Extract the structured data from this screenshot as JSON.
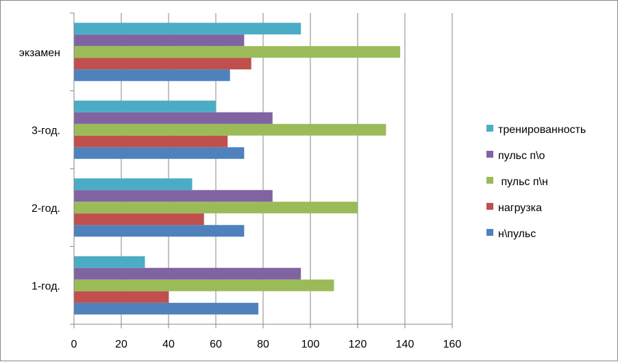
{
  "chart_data": {
    "type": "bar",
    "orientation": "horizontal",
    "title": "",
    "xlabel": "",
    "ylabel": "",
    "categories": [
      "1-год.",
      "2-год.",
      "3-год.",
      "экзамен"
    ],
    "series": [
      {
        "name": "н\\пульс",
        "color": "#4F81BD",
        "values": [
          78,
          72,
          72,
          66
        ]
      },
      {
        "name": "нагрузка",
        "color": "#C0504D",
        "values": [
          40,
          55,
          65,
          75
        ]
      },
      {
        "name": " пульс п\\н",
        "color": "#9BBB59",
        "values": [
          110,
          120,
          132,
          138
        ]
      },
      {
        "name": "пульс п\\о",
        "color": "#8064A2",
        "values": [
          96,
          84,
          84,
          72
        ]
      },
      {
        "name": "тренированность",
        "color": "#4BACC6",
        "values": [
          30,
          50,
          60,
          96
        ]
      }
    ],
    "xlim": [
      0,
      160
    ],
    "xticks": [
      0,
      20,
      40,
      60,
      80,
      100,
      120,
      140,
      160
    ],
    "grid": "vertical",
    "legend": "right"
  }
}
